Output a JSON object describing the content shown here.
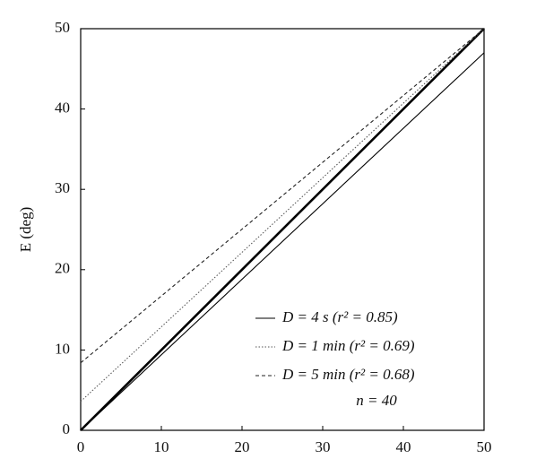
{
  "chart_data": {
    "type": "line",
    "y_label": "E (deg)",
    "xlim": [
      0,
      50
    ],
    "ylim": [
      0,
      50
    ],
    "xticks": [
      0,
      10,
      20,
      30,
      40,
      50
    ],
    "yticks": [
      0,
      10,
      20,
      30,
      40,
      50
    ],
    "reference": {
      "x": [
        0,
        50
      ],
      "values": [
        0,
        50
      ],
      "color": "#000000"
    },
    "series": [
      {
        "name": "D = 4 s    (r² = 0.85)",
        "color": "#000000",
        "dash": "solid",
        "x": [
          0,
          50
        ],
        "values": [
          0,
          47
        ]
      },
      {
        "name": "D = 1 min (r² = 0.69)",
        "color": "#555555",
        "dash": "dotted",
        "x": [
          0,
          50
        ],
        "values": [
          3.6,
          50
        ]
      },
      {
        "name": "D = 5 min (r² = 0.68)",
        "color": "#222222",
        "dash": "dashed",
        "x": [
          0,
          50
        ],
        "values": [
          8.4,
          50
        ]
      }
    ],
    "legend": "lower right",
    "annotation": "n = 40"
  }
}
